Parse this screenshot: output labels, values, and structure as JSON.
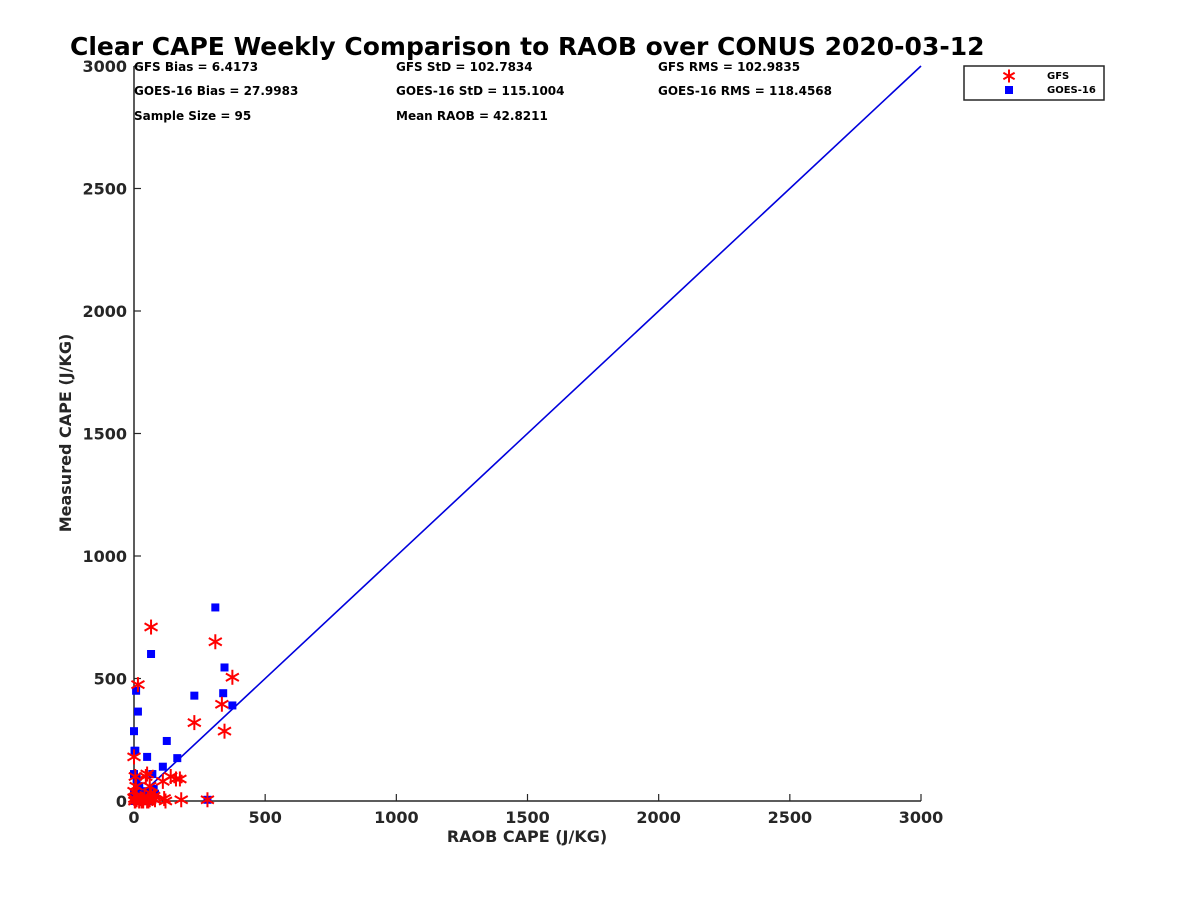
{
  "chart_data": {
    "type": "scatter",
    "title": "Clear CAPE Weekly Comparison to RAOB over CONUS 2020-03-12",
    "xlabel": "RAOB CAPE (J/KG)",
    "ylabel": "Measured CAPE (J/KG)",
    "xlim": [
      0,
      3000
    ],
    "ylim": [
      0,
      3000
    ],
    "xticks": [
      "0",
      "500",
      "1000",
      "1500",
      "2000",
      "2500",
      "3000"
    ],
    "yticks": [
      "0",
      "500",
      "1000",
      "1500",
      "2000",
      "2500",
      "3000"
    ],
    "grid": false,
    "legend_position": "top-right",
    "reference_line": {
      "x": [
        0,
        3000
      ],
      "y": [
        0,
        3000
      ],
      "color": "#0000dd"
    },
    "stats": {
      "gfs_bias": "GFS Bias = 6.4173",
      "gfs_std": "GFS StD = 102.7834",
      "gfs_rms": "GFS RMS = 102.9835",
      "goes_bias": "GOES-16 Bias = 27.9983",
      "goes_std": "GOES-16 StD = 115.1004",
      "goes_rms": "GOES-16 RMS = 118.4568",
      "sample_size": "Sample Size = 95",
      "mean_raob": "Mean RAOB = 42.8211"
    },
    "series": [
      {
        "name": "GFS",
        "marker": "asterisk",
        "color": "#ff0000",
        "x": [
          0,
          3,
          5,
          8,
          10,
          15,
          20,
          25,
          30,
          35,
          40,
          45,
          50,
          55,
          60,
          65,
          70,
          75,
          80,
          3,
          20,
          65,
          10,
          30,
          50,
          110,
          120,
          140,
          160,
          175,
          230,
          310,
          335,
          345,
          375,
          280,
          180,
          115,
          60,
          0,
          5
        ],
        "y": [
          180,
          10,
          100,
          60,
          20,
          475,
          0,
          10,
          5,
          0,
          15,
          100,
          110,
          0,
          5,
          710,
          10,
          20,
          5,
          0,
          0,
          30,
          5,
          0,
          0,
          80,
          0,
          100,
          90,
          90,
          320,
          650,
          395,
          285,
          505,
          5,
          5,
          10,
          60,
          40,
          0
        ]
      },
      {
        "name": "GOES-16",
        "marker": "square",
        "color": "#0000ff",
        "x": [
          0,
          0,
          2,
          5,
          8,
          10,
          15,
          20,
          25,
          30,
          35,
          40,
          45,
          50,
          55,
          60,
          65,
          70,
          80,
          3,
          10,
          15,
          20,
          30,
          40,
          50,
          60,
          70,
          75,
          110,
          125,
          165,
          230,
          310,
          340,
          345,
          375,
          280,
          0,
          5,
          10,
          20,
          30,
          45,
          55,
          65,
          15,
          25
        ],
        "y": [
          285,
          110,
          205,
          205,
          450,
          90,
          365,
          0,
          10,
          5,
          20,
          10,
          15,
          180,
          5,
          20,
          600,
          110,
          30,
          0,
          5,
          45,
          60,
          10,
          0,
          5,
          0,
          10,
          50,
          140,
          245,
          175,
          430,
          790,
          440,
          545,
          390,
          5,
          30,
          15,
          0,
          25,
          15,
          40,
          5,
          30,
          0,
          10
        ]
      }
    ]
  }
}
